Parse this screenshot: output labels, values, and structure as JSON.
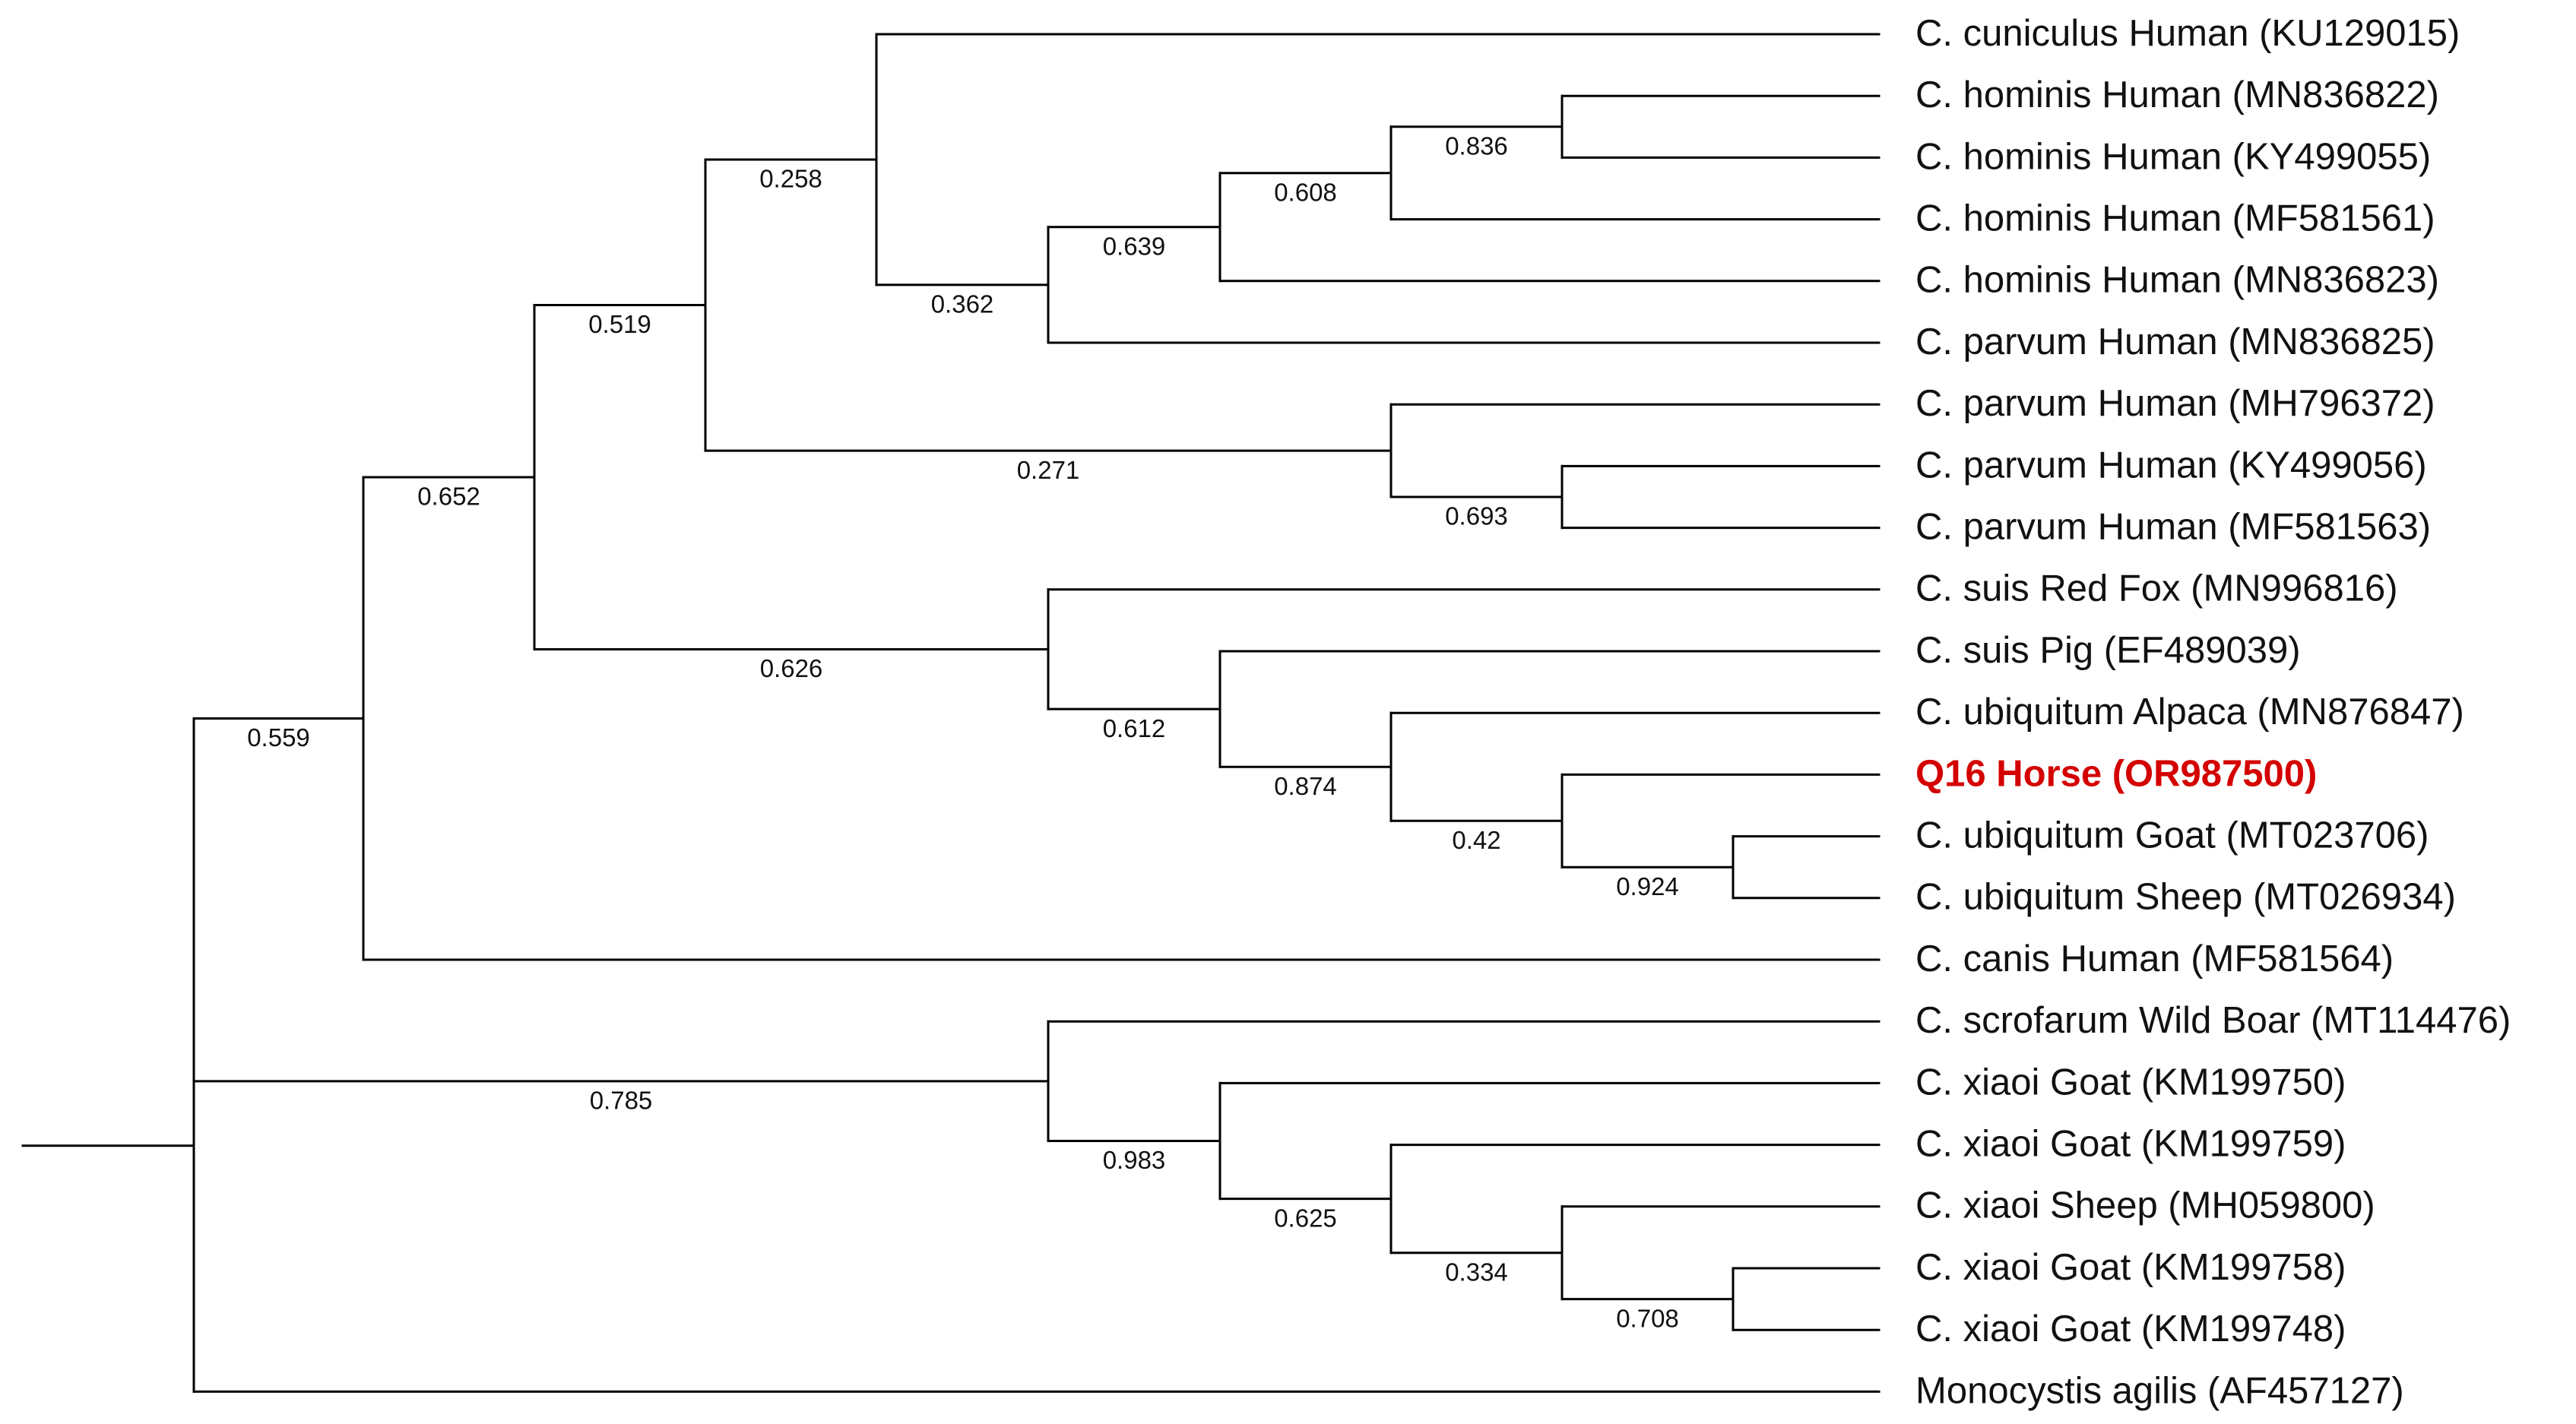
{
  "figure": {
    "type": "phylogenetic-tree",
    "highlight_color": "#d40000",
    "line_color": "#000000"
  },
  "taxa": [
    {
      "id": "L1",
      "label": "C. cuniculus Human (KU129015)"
    },
    {
      "id": "L2",
      "label": "C. hominis Human (MN836822)"
    },
    {
      "id": "L3",
      "label": "C. hominis Human (KY499055)"
    },
    {
      "id": "L4",
      "label": "C. hominis Human (MF581561)"
    },
    {
      "id": "L5",
      "label": "C. hominis Human (MN836823)"
    },
    {
      "id": "L6",
      "label": "C. parvum Human (MN836825)"
    },
    {
      "id": "L7",
      "label": "C. parvum Human (MH796372)"
    },
    {
      "id": "L8",
      "label": "C. parvum Human (KY499056)"
    },
    {
      "id": "L9",
      "label": "C. parvum Human (MF581563)"
    },
    {
      "id": "L10",
      "label": "C. suis Red Fox (MN996816)"
    },
    {
      "id": "L11",
      "label": "C. suis Pig (EF489039)"
    },
    {
      "id": "L12",
      "label": "C. ubiquitum Alpaca (MN876847)"
    },
    {
      "id": "L13",
      "label": "Q16 Horse (OR987500)",
      "highlight": true
    },
    {
      "id": "L14",
      "label": "C. ubiquitum Goat (MT023706)"
    },
    {
      "id": "L15",
      "label": "C. ubiquitum Sheep (MT026934)"
    },
    {
      "id": "L16",
      "label": "C. canis Human (MF581564)"
    },
    {
      "id": "L17",
      "label": "C. scrofarum Wild Boar (MT114476)"
    },
    {
      "id": "L18",
      "label": "C. xiaoi Goat (KM199750)"
    },
    {
      "id": "L19",
      "label": "C. xiaoi Goat (KM199759)"
    },
    {
      "id": "L20",
      "label": "C. xiaoi Sheep (MH059800)"
    },
    {
      "id": "L21",
      "label": "C. xiaoi Goat (KM199758)"
    },
    {
      "id": "L22",
      "label": "C. xiaoi Goat (KM199748)"
    },
    {
      "id": "L23",
      "label": "Monocystis agilis (AF457127)"
    }
  ],
  "support_values": [
    {
      "node": "root-ingroup",
      "value": "0.559"
    },
    {
      "node": "n652",
      "value": "0.652"
    },
    {
      "node": "n519",
      "value": "0.519"
    },
    {
      "node": "n258",
      "value": "0.258"
    },
    {
      "node": "n362",
      "value": "0.362"
    },
    {
      "node": "n639",
      "value": "0.639"
    },
    {
      "node": "n608",
      "value": "0.608"
    },
    {
      "node": "n836",
      "value": "0.836"
    },
    {
      "node": "n271",
      "value": "0.271"
    },
    {
      "node": "n693",
      "value": "0.693"
    },
    {
      "node": "n626",
      "value": "0.626"
    },
    {
      "node": "n612",
      "value": "0.612"
    },
    {
      "node": "n874",
      "value": "0.874"
    },
    {
      "node": "n42",
      "value": "0.42"
    },
    {
      "node": "n924",
      "value": "0.924"
    },
    {
      "node": "n785",
      "value": "0.785"
    },
    {
      "node": "n983",
      "value": "0.983"
    },
    {
      "node": "n625",
      "value": "0.625"
    },
    {
      "node": "n334",
      "value": "0.334"
    },
    {
      "node": "n708",
      "value": "0.708"
    }
  ]
}
